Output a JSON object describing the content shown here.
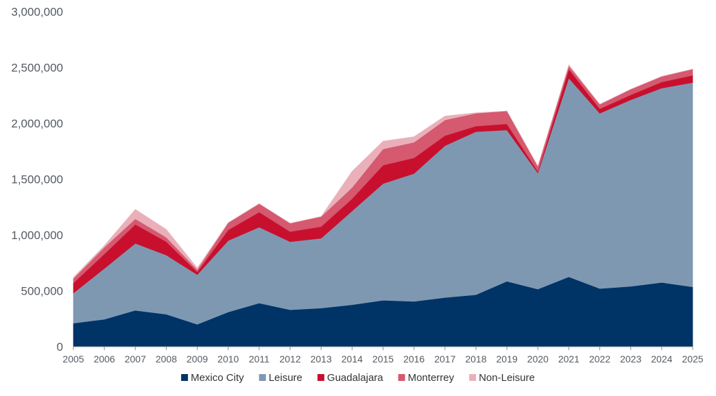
{
  "chart_data": {
    "type": "area",
    "stacked": true,
    "title": "",
    "xlabel": "",
    "ylabel": "",
    "x": [
      "2005",
      "2006",
      "2007",
      "2008",
      "2009",
      "2010",
      "2011",
      "2012",
      "2013",
      "2014",
      "2015",
      "2016",
      "2017",
      "2018",
      "2019",
      "2020",
      "2021",
      "2022",
      "2023",
      "2024",
      "2025"
    ],
    "ylim": [
      0,
      3000000
    ],
    "yticks": [
      0,
      500000,
      1000000,
      1500000,
      2000000,
      2500000,
      3000000
    ],
    "ytick_labels": [
      "0",
      "500,000",
      "1,000,000",
      "1,500,000",
      "2,000,000",
      "2,500,000",
      "3,000,000"
    ],
    "grid": false,
    "legend_position": "bottom",
    "series": [
      {
        "name": "Mexico City",
        "color": "#003366",
        "values": [
          210000,
          245000,
          325000,
          290000,
          200000,
          310000,
          390000,
          330000,
          345000,
          375000,
          415000,
          405000,
          440000,
          465000,
          585000,
          515000,
          625000,
          520000,
          540000,
          575000,
          535000
        ]
      },
      {
        "name": "Leisure",
        "color": "#7f98b2",
        "values": [
          270000,
          455000,
          600000,
          530000,
          445000,
          640000,
          680000,
          610000,
          625000,
          840000,
          1045000,
          1145000,
          1360000,
          1460000,
          1355000,
          1040000,
          1780000,
          1570000,
          1670000,
          1740000,
          1830000
        ]
      },
      {
        "name": "Guadalajara",
        "color": "#c8102e",
        "values": [
          90000,
          130000,
          170000,
          120000,
          25000,
          95000,
          135000,
          90000,
          105000,
          110000,
          165000,
          140000,
          90000,
          50000,
          55000,
          15000,
          80000,
          40000,
          45000,
          55000,
          65000
        ]
      },
      {
        "name": "Monterrey",
        "color": "#d5596f",
        "values": [
          40000,
          60000,
          50000,
          40000,
          20000,
          65000,
          75000,
          75000,
          90000,
          100000,
          145000,
          140000,
          140000,
          115000,
          115000,
          45000,
          30000,
          40000,
          50000,
          50000,
          55000
        ]
      },
      {
        "name": "Non-Leisure",
        "color": "#eab0ba",
        "values": [
          10000,
          15000,
          85000,
          70000,
          15000,
          0,
          0,
          0,
          0,
          145000,
          70000,
          50000,
          35000,
          5000,
          0,
          0,
          10000,
          0,
          0,
          0,
          0
        ]
      }
    ]
  }
}
